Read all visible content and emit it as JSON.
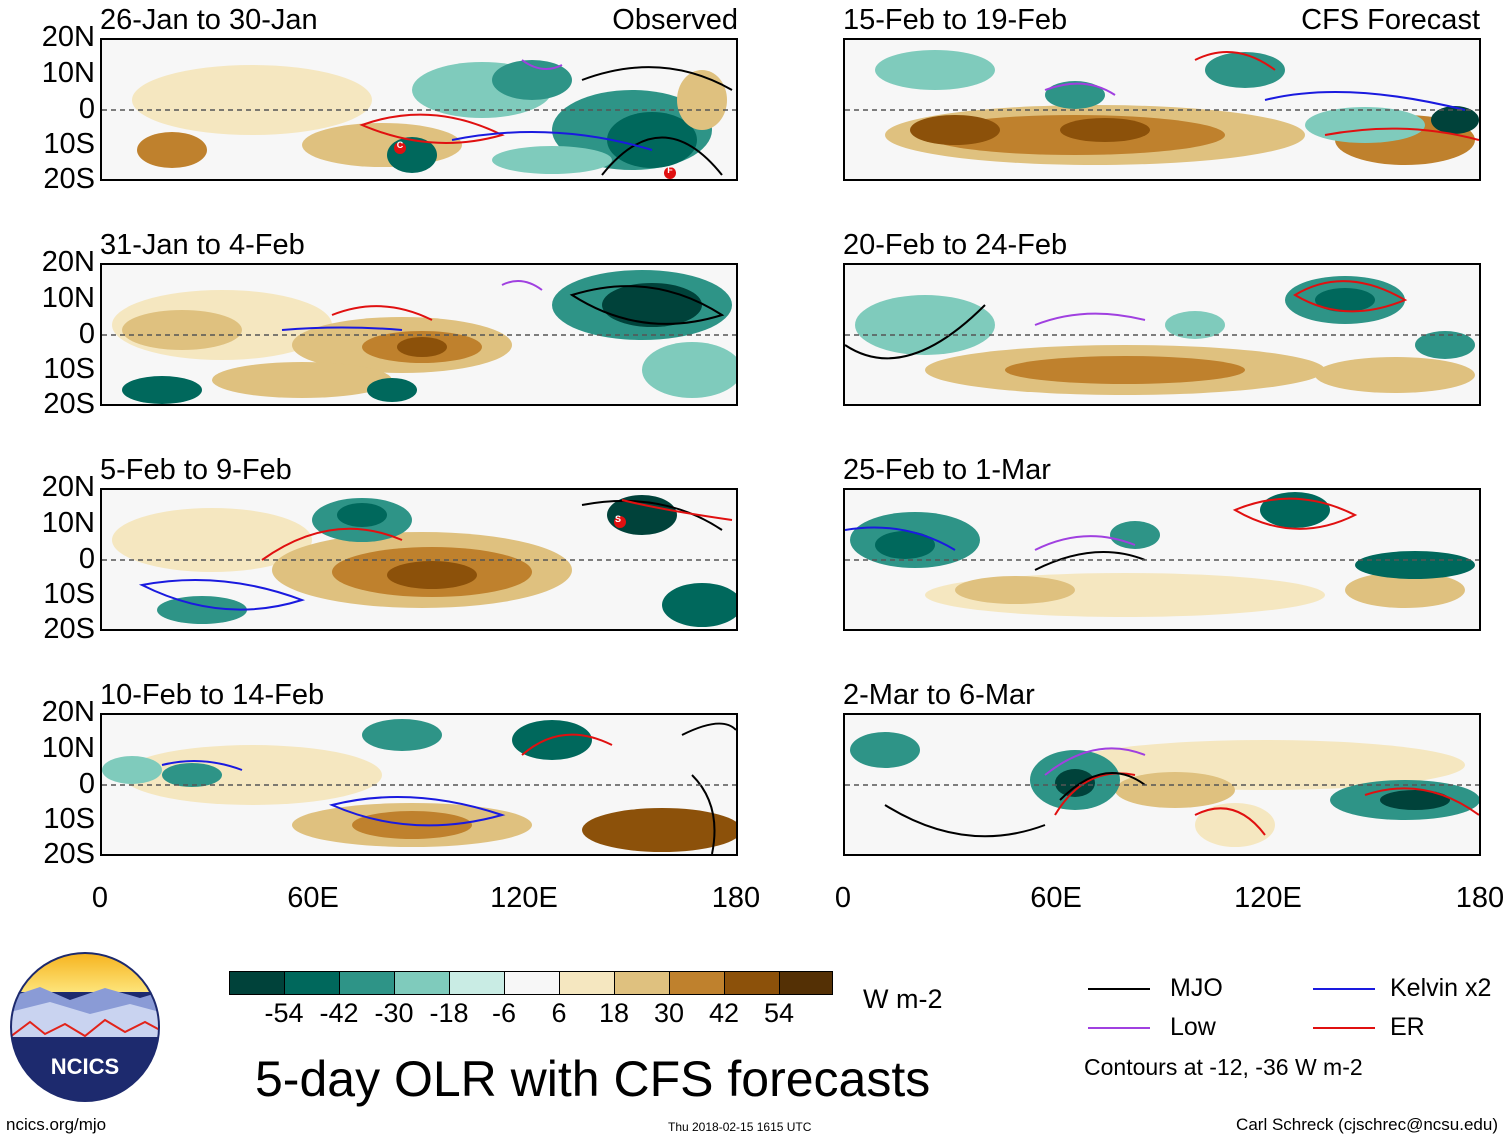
{
  "panels_left": [
    {
      "title": "26-Jan to 30-Jan",
      "label": "Observed"
    },
    {
      "title": "31-Jan to 4-Feb",
      "label": ""
    },
    {
      "title": "5-Feb to 9-Feb",
      "label": ""
    },
    {
      "title": "10-Feb to 14-Feb",
      "label": ""
    }
  ],
  "panels_right": [
    {
      "title": "15-Feb to 19-Feb",
      "label": "CFS Forecast"
    },
    {
      "title": "20-Feb to 24-Feb",
      "label": ""
    },
    {
      "title": "25-Feb to 1-Mar",
      "label": ""
    },
    {
      "title": "2-Mar to 6-Mar",
      "label": ""
    }
  ],
  "lat_labels": [
    "20N",
    "10N",
    "0",
    "10S",
    "20S"
  ],
  "lon_labels": [
    "0",
    "60E",
    "120E",
    "180"
  ],
  "colorbar": {
    "colors": [
      "#00423a",
      "#00685c",
      "#2e9487",
      "#7fcbbc",
      "#c9ece4",
      "#f7f7f7",
      "#f5e7c0",
      "#dfc17f",
      "#bf812d",
      "#8c510a",
      "#543005"
    ],
    "ticks": [
      "-54",
      "-42",
      "-30",
      "-18",
      "-6",
      "6",
      "18",
      "30",
      "42",
      "54"
    ],
    "units": "W m-2"
  },
  "legend": {
    "items": [
      {
        "label": "MJO",
        "color": "#000000"
      },
      {
        "label": "Kelvin x2",
        "color": "#1a1adf"
      },
      {
        "label": "Low",
        "color": "#a040e0"
      },
      {
        "label": "ER",
        "color": "#e01010"
      }
    ],
    "note": "Contours at -12, -36 W m-2"
  },
  "main_title": "5-day OLR with CFS forecasts",
  "logo_text": "NCICS",
  "footer": {
    "left": "ncics.org/mjo",
    "center": "Thu 2018-02-15 1615 UTC",
    "right": "Carl Schreck (cjschrec@ncsu.edu)"
  },
  "storm_markers": [
    "C",
    "F",
    "S"
  ]
}
